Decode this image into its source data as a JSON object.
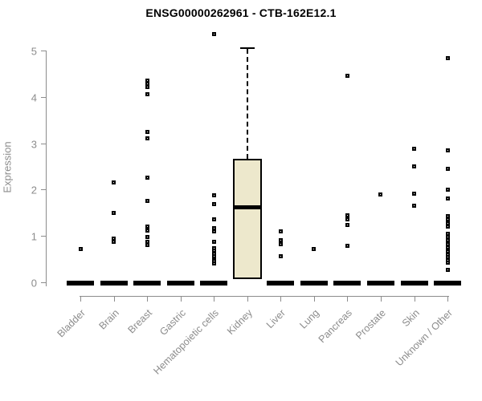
{
  "title": "ENSG00000262961 - CTB-162E12.1",
  "chart_data": {
    "type": "boxplot",
    "title": "ENSG00000262961 - CTB-162E12.1",
    "xlabel": "",
    "ylabel": "Expression",
    "ylim": [
      0,
      5
    ],
    "yticks": [
      0,
      1,
      2,
      3,
      4,
      5
    ],
    "grid": false,
    "legend": "none",
    "axis_color": "#8C8C8C",
    "box_fill_color": "#EDE8CC",
    "box_line_color": "#000000",
    "point_color": "#000000",
    "categories": [
      "Bladder",
      "Brain",
      "Breast",
      "Gastric",
      "Hematopoietic cells",
      "Kidney",
      "Liver",
      "Lung",
      "Pancreas",
      "Prostate",
      "Skin",
      "Unknown / Other"
    ],
    "groups": [
      {
        "name": "Bladder",
        "box": {
          "q1": 0,
          "median": 0,
          "q3": 0,
          "whisker_low": 0,
          "whisker_high": 0
        },
        "outliers": [
          0.72
        ]
      },
      {
        "name": "Brain",
        "box": {
          "q1": 0,
          "median": 0,
          "q3": 0,
          "whisker_low": 0,
          "whisker_high": 0
        },
        "outliers": [
          2.15,
          1.5,
          0.95,
          0.87
        ]
      },
      {
        "name": "Breast",
        "box": {
          "q1": 0,
          "median": 0,
          "q3": 0,
          "whisker_low": 0,
          "whisker_high": 0
        },
        "outliers": [
          4.35,
          4.28,
          4.22,
          4.05,
          3.25,
          3.1,
          2.25,
          1.75,
          1.2,
          1.12,
          0.98,
          0.88,
          0.8
        ]
      },
      {
        "name": "Gastric",
        "box": {
          "q1": 0,
          "median": 0,
          "q3": 0,
          "whisker_low": 0,
          "whisker_high": 0
        },
        "outliers": []
      },
      {
        "name": "Hematopoietic cells",
        "box": {
          "q1": 0,
          "median": 0,
          "q3": 0,
          "whisker_low": 0,
          "whisker_high": 0
        },
        "outliers": [
          5.36,
          1.87,
          1.68,
          1.35,
          1.16,
          1.1,
          0.87,
          0.74,
          0.68,
          0.62,
          0.57,
          0.5,
          0.45,
          0.4
        ]
      },
      {
        "name": "Kidney",
        "box": {
          "q1": 0.07,
          "median": 1.63,
          "q3": 2.67,
          "whisker_low": 0.07,
          "whisker_high": 5.03
        },
        "outliers": []
      },
      {
        "name": "Liver",
        "box": {
          "q1": 0,
          "median": 0,
          "q3": 0,
          "whisker_low": 0,
          "whisker_high": 0
        },
        "outliers": [
          1.1,
          0.9,
          0.82,
          0.57
        ]
      },
      {
        "name": "Lung",
        "box": {
          "q1": 0,
          "median": 0,
          "q3": 0,
          "whisker_low": 0,
          "whisker_high": 0
        },
        "outliers": [
          0.72
        ]
      },
      {
        "name": "Pancreas",
        "box": {
          "q1": 0,
          "median": 0,
          "q3": 0,
          "whisker_low": 0,
          "whisker_high": 0
        },
        "outliers": [
          4.45,
          1.45,
          1.36,
          1.23,
          0.78
        ]
      },
      {
        "name": "Prostate",
        "box": {
          "q1": 0,
          "median": 0,
          "q3": 0,
          "whisker_low": 0,
          "whisker_high": 0
        },
        "outliers": [
          1.9
        ]
      },
      {
        "name": "Skin",
        "box": {
          "q1": 0,
          "median": 0,
          "q3": 0,
          "whisker_low": 0,
          "whisker_high": 0
        },
        "outliers": [
          2.88,
          2.5,
          1.92,
          1.65
        ]
      },
      {
        "name": "Unknown / Other",
        "box": {
          "q1": 0,
          "median": 0,
          "q3": 0,
          "whisker_low": 0,
          "whisker_high": 0
        },
        "outliers": [
          4.83,
          2.84,
          2.44,
          1.99,
          1.8,
          1.42,
          1.35,
          1.28,
          1.2,
          1.04,
          0.97,
          0.9,
          0.83,
          0.76,
          0.67,
          0.6,
          0.54,
          0.47,
          0.43,
          0.26
        ]
      }
    ]
  }
}
